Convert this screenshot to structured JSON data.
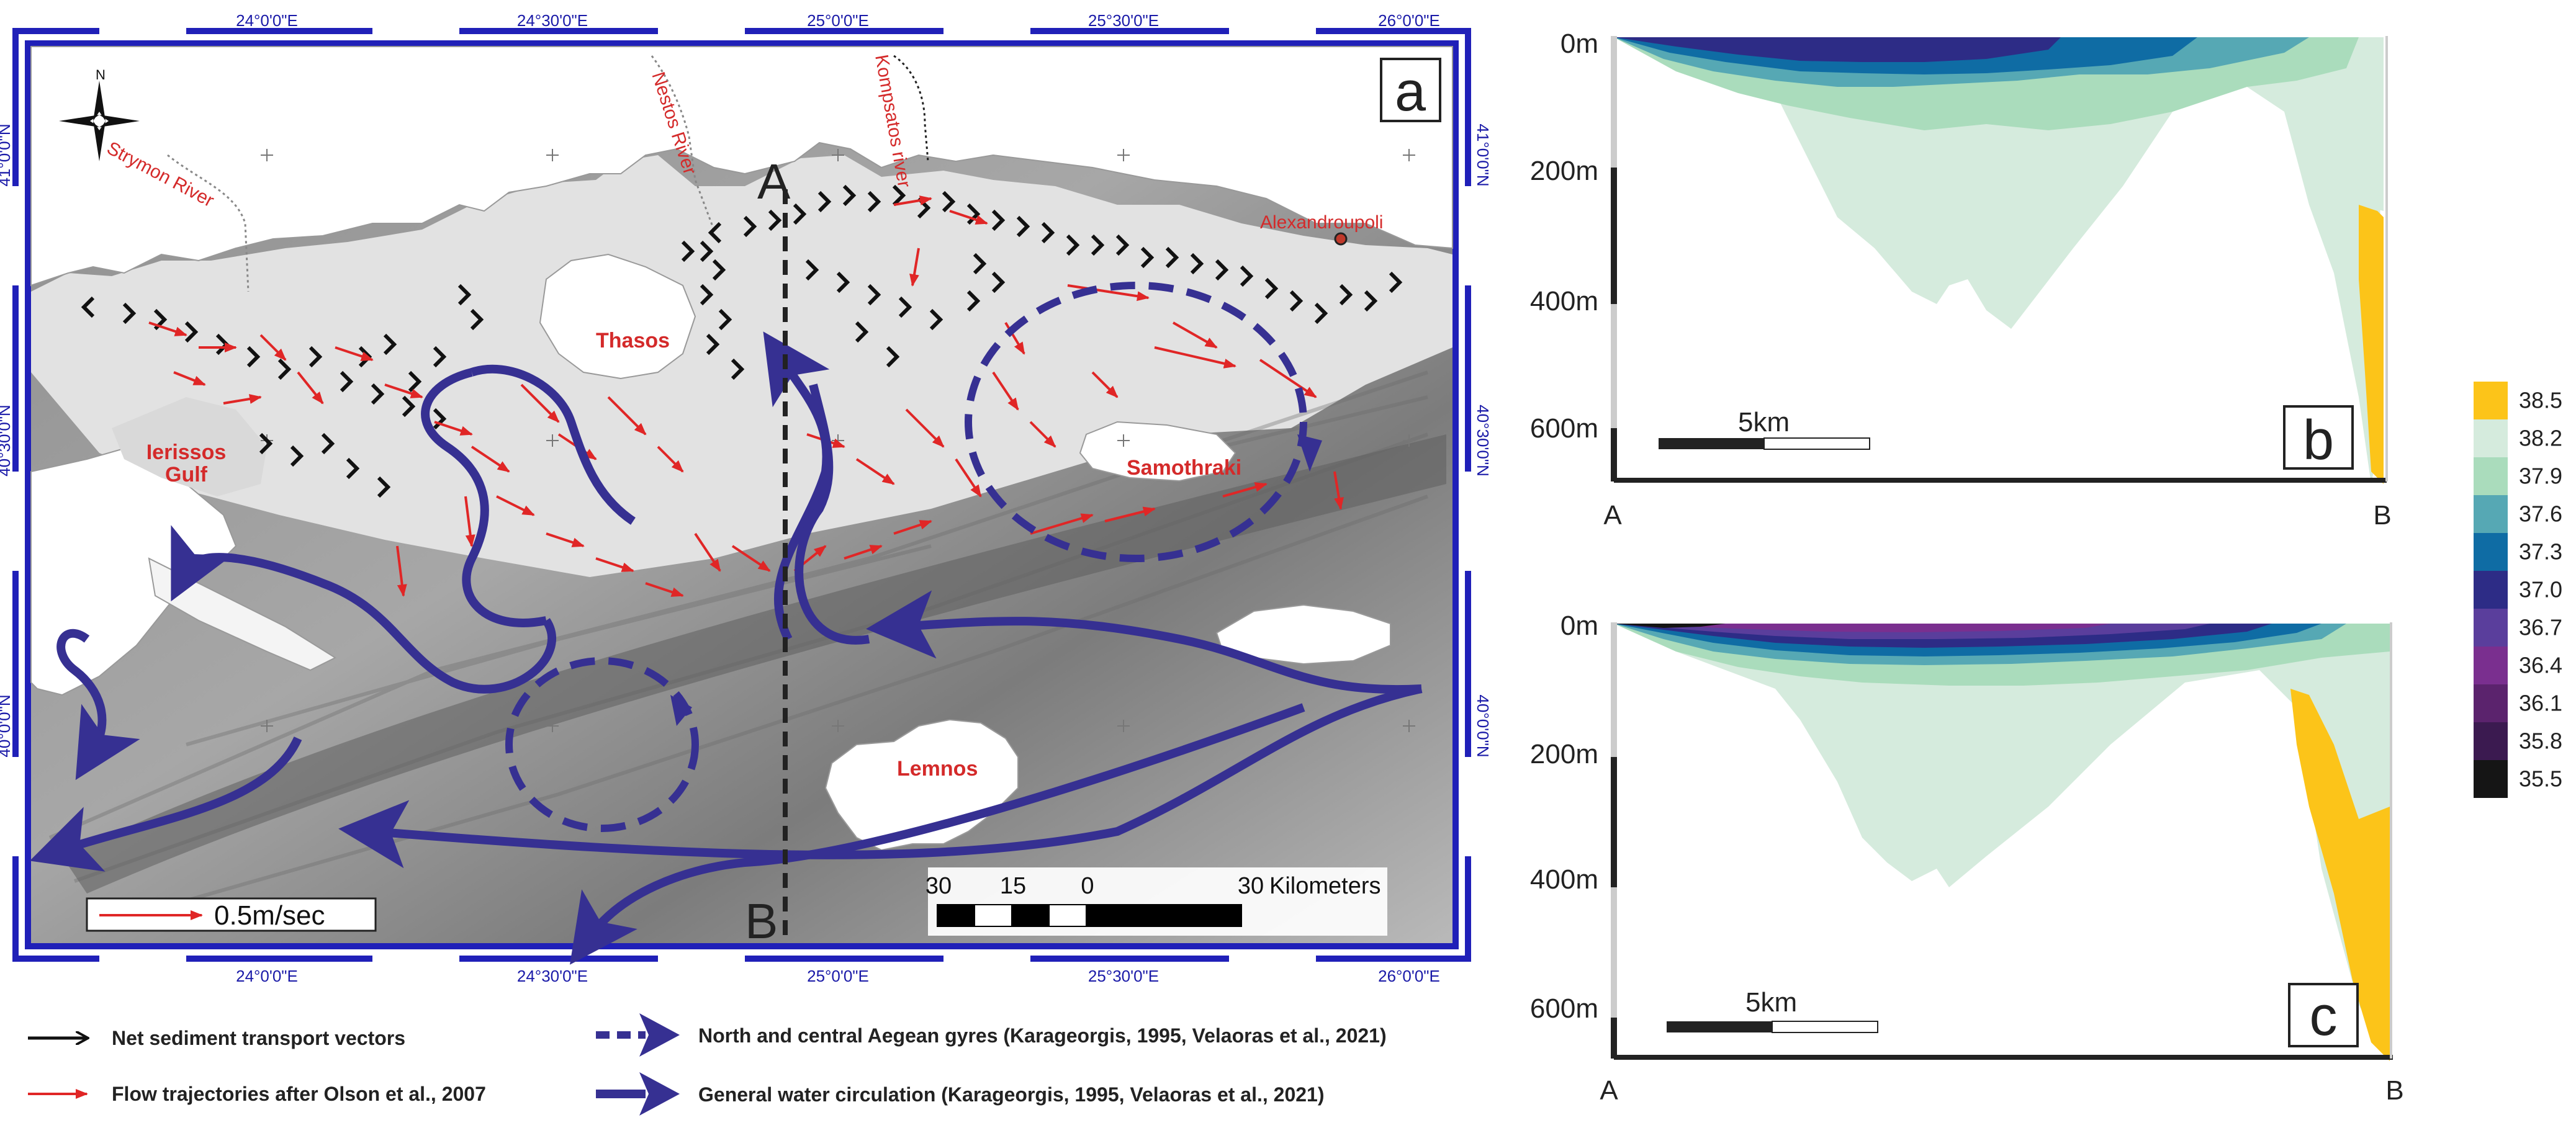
{
  "panels": {
    "a": "a",
    "b": "b",
    "c": "c"
  },
  "map": {
    "lon_labels": [
      "24°0'0\"E",
      "24°30'0\"E",
      "25°0'0\"E",
      "25°30'0\"E",
      "26°0'0\"E"
    ],
    "lat_labels": [
      "41°0'0\"N",
      "40°30'0\"N",
      "40°0'0\"N"
    ],
    "places": {
      "strymon": "Strymon River",
      "nestos": "Nestos River",
      "kompsatos": "Kompsatos river",
      "alexandroupoli": "Alexandroupoli",
      "thasos": "Thasos",
      "samothraki": "Samothraki",
      "lemnos": "Lemnos",
      "gulf_1": "Ierissos",
      "gulf_2": "Gulf"
    },
    "transect_start": "A",
    "transect_end": "B",
    "velocity_scale": "0.5m/sec",
    "scale_bar": {
      "ticks": [
        "30",
        "15",
        "0",
        "30"
      ],
      "unit": "Kilometers"
    },
    "north_label": "N"
  },
  "legend": {
    "net_sediment": "Net sediment transport vectors",
    "flow_traj": "Flow trajectories after Olson et al., 2007",
    "gyres": "North and central Aegean gyres (Karageorgis, 1995, Velaoras et al., 2021)",
    "circulation": "General  water circulation (Karageorgis, 1995, Velaoras et al., 2021)"
  },
  "sections": {
    "depth_labels": [
      "0m",
      "200m",
      "400m",
      "600m"
    ],
    "scale_label": "5km",
    "ends": [
      "A",
      "B"
    ]
  },
  "colorbar": {
    "labels": [
      "38.5",
      "38.2",
      "37.9",
      "37.6",
      "37.3",
      "37.0",
      "36.7",
      "36.4",
      "36.1",
      "35.8",
      "35.5"
    ],
    "colors": [
      "#fcc419",
      "#d5ebdd",
      "#aadcbc",
      "#56a8b4",
      "#0f6ca4",
      "#2d2c86",
      "#5a3e9c",
      "#7a2f8f",
      "#5b236d",
      "#3b1a50",
      "#151515"
    ]
  }
}
